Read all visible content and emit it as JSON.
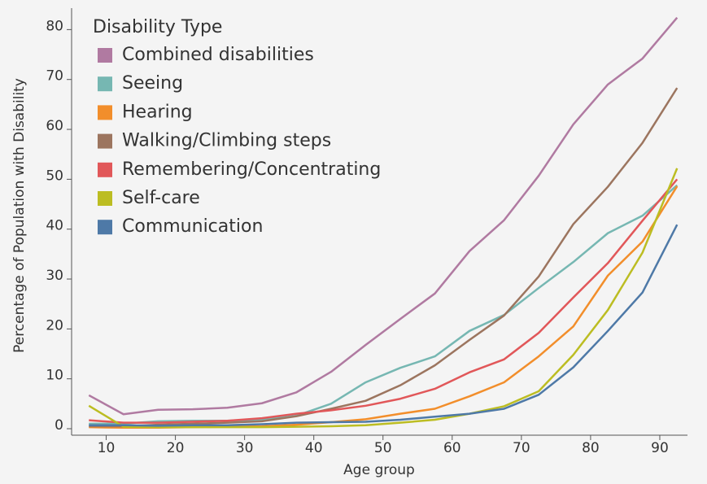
{
  "chart_data": {
    "type": "line",
    "x_label": "Age group",
    "y_label": "Percentage of Population with Disability",
    "legend_title": "Disability Type",
    "legend_position": "upper left",
    "x": [
      7.5,
      12.5,
      17.5,
      22.5,
      27.5,
      32.5,
      37.5,
      42.5,
      47.5,
      52.5,
      57.5,
      62.5,
      67.5,
      72.5,
      77.5,
      82.5,
      87.5,
      92.5
    ],
    "xlim": [
      5,
      94
    ],
    "xticks": [
      10,
      20,
      30,
      40,
      50,
      60,
      70,
      80,
      90
    ],
    "ylim": [
      -1.3,
      84.3
    ],
    "yticks": [
      0,
      10,
      20,
      30,
      40,
      50,
      60,
      70,
      80
    ],
    "series": [
      {
        "name": "Combined disabilities",
        "color": "#b07aa1",
        "values": [
          6.7,
          2.9,
          3.8,
          3.9,
          4.2,
          5.1,
          7.3,
          11.4,
          16.8,
          22,
          27.1,
          35.6,
          41.8,
          50.7,
          61,
          69,
          74.2,
          82.4
        ]
      },
      {
        "name": "Seeing",
        "color": "#76b7b2",
        "values": [
          1,
          1,
          1.5,
          1.6,
          1.6,
          1.8,
          2.6,
          5,
          9.3,
          12.2,
          14.5,
          19.6,
          22.8,
          28.2,
          33.4,
          39.2,
          42.7,
          48.8
        ]
      },
      {
        "name": "Hearing",
        "color": "#f28e2b",
        "values": [
          0.3,
          0.2,
          0.2,
          0.3,
          0.4,
          0.5,
          0.8,
          1.3,
          1.9,
          3,
          4,
          6.5,
          9.3,
          14.5,
          20.5,
          30.7,
          37.5,
          48.6
        ]
      },
      {
        "name": "Walking/Climbing steps",
        "color": "#9c755f",
        "values": [
          0.5,
          0.5,
          0.8,
          1,
          1.2,
          1.5,
          2.5,
          4,
          5.6,
          8.7,
          12.7,
          17.8,
          22.7,
          30.5,
          41,
          48.5,
          57.3,
          68.3
        ]
      },
      {
        "name": "Remembering/Concentrating",
        "color": "#e15759",
        "values": [
          1.7,
          1.2,
          1.2,
          1.4,
          1.6,
          2.1,
          3,
          3.7,
          4.6,
          6,
          8,
          11.3,
          13.9,
          19.2,
          26.3,
          33.2,
          41.7,
          50
        ]
      },
      {
        "name": "Self-care",
        "color": "#bcbd22",
        "values": [
          4.6,
          0.4,
          0.3,
          0.3,
          0.3,
          0.3,
          0.4,
          0.5,
          0.7,
          1.2,
          1.8,
          3,
          4.5,
          7.5,
          14.8,
          23.8,
          35.3,
          52.2
        ]
      },
      {
        "name": "Communication",
        "color": "#4e79a7",
        "values": [
          0.7,
          0.7,
          0.6,
          0.7,
          0.7,
          0.9,
          1.2,
          1.3,
          1.4,
          1.8,
          2.4,
          3,
          4,
          6.8,
          12.3,
          19.6,
          27.3,
          40.9
        ]
      }
    ]
  }
}
